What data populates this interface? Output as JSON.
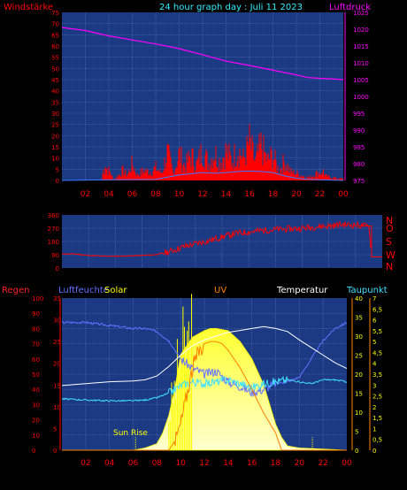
{
  "header": {
    "left_label": "Windstärke",
    "title": "24 hour graph day : Juli 11 2023",
    "right_label": "Luftdruck"
  },
  "hour_ticks": [
    "02",
    "04",
    "06",
    "08",
    "10",
    "12",
    "14",
    "16",
    "18",
    "20",
    "22",
    "00"
  ],
  "colors": {
    "panel_bg": "#1c3a84",
    "grid": "#5a72b8",
    "wind": "#ff0000",
    "wind_avg": "#3a7cff",
    "pressure": "#ff00ff",
    "direction": "#ff0000",
    "rain": "#ff2020",
    "humidity": "#6070ff",
    "solar": "#ffff00",
    "uv": "#ff8000",
    "temperature": "#ffffff",
    "dewpoint": "#40e0ff",
    "tick_red": "#ff0000",
    "tick_yellow": "#ffff00"
  },
  "chart_data": [
    {
      "type": "line",
      "name": "wind-pressure",
      "x_hours": [
        0,
        24
      ],
      "ylim_left": [
        0,
        75
      ],
      "ylim_right": [
        975,
        1025
      ],
      "yticks_left": [
        "0",
        "5",
        "10",
        "15",
        "20",
        "25",
        "30",
        "35",
        "40",
        "45",
        "50",
        "55",
        "60",
        "65",
        "70",
        "75"
      ],
      "yticks_right": [
        "975",
        "980",
        "985",
        "990",
        "995",
        "1000",
        "1005",
        "1010",
        "1015",
        "1020",
        "1025"
      ],
      "ylabel_left": "Windstärke",
      "ylabel_right": "Luftdruck",
      "series": [
        {
          "key": "pressure",
          "x": [
            0,
            2,
            4,
            6,
            8,
            10,
            12,
            14,
            16,
            18,
            20,
            21,
            22,
            24
          ],
          "values": [
            1020.5,
            1019.6,
            1018,
            1016.8,
            1015.6,
            1014.2,
            1012.4,
            1010.5,
            1009.2,
            1007.8,
            1006.4,
            1005.6,
            1005.4,
            1005.0
          ]
        },
        {
          "key": "wind_envelope",
          "x": [
            0,
            3.4,
            3.5,
            3.8,
            4.2,
            4.4,
            5.2,
            5.6,
            6,
            6.4,
            7,
            7.6,
            8,
            8.5,
            9,
            9.5,
            10,
            10.5,
            11,
            11.5,
            12,
            12.5,
            13,
            13.5,
            14,
            14.5,
            15,
            15.5,
            16,
            16.5,
            17,
            17.5,
            18,
            18.5,
            19,
            19.5,
            20,
            21,
            22,
            22.5,
            23,
            24
          ],
          "values": [
            0,
            0,
            7,
            9,
            5,
            0,
            7,
            4,
            12,
            4,
            7,
            6,
            9,
            5,
            20,
            5,
            19,
            10,
            18,
            11,
            22,
            12,
            20,
            13,
            21,
            14,
            23,
            15,
            27,
            13,
            25,
            14,
            18,
            7,
            14,
            6,
            5,
            2,
            6,
            3,
            2,
            1
          ]
        },
        {
          "key": "wind_avg",
          "x": [
            0,
            8,
            9,
            10,
            11,
            12,
            13,
            14,
            15,
            16,
            17,
            18,
            19,
            20,
            21,
            22,
            24
          ],
          "values": [
            0,
            0.5,
            1.5,
            2.5,
            3,
            3.5,
            3.2,
            3.5,
            4,
            4.2,
            4,
            3.5,
            2,
            1,
            0.5,
            0.3,
            0
          ]
        }
      ]
    },
    {
      "type": "line",
      "name": "wind-direction",
      "x_hours": [
        0,
        24
      ],
      "ylim": [
        0,
        360
      ],
      "yticks": [
        "0",
        "90",
        "180",
        "270",
        "360"
      ],
      "compass_labels": [
        "N",
        "W",
        "S",
        "O",
        "N"
      ],
      "series": [
        {
          "key": "direction",
          "x": [
            0,
            1,
            2,
            3,
            4,
            5,
            6,
            7,
            8,
            9,
            10,
            11,
            12,
            13,
            14,
            15,
            16,
            17,
            18,
            19,
            20,
            21,
            22,
            23,
            23.2,
            24
          ],
          "values": [
            95,
            95,
            85,
            80,
            80,
            82,
            85,
            90,
            110,
            140,
            165,
            185,
            210,
            235,
            245,
            255,
            260,
            265,
            270,
            280,
            285,
            295,
            290,
            285,
            75,
            75
          ]
        }
      ]
    },
    {
      "type": "line",
      "name": "weather-multi",
      "x_hours": [
        0,
        24
      ],
      "legend": [
        "Regen",
        "Luftfeuchte",
        "Solar",
        "UV",
        "Temperatur",
        "Taupunkt"
      ],
      "annotation": "Sun Rise",
      "ylim_rain": [
        0,
        100
      ],
      "yticks_rain": [
        "0",
        "10",
        "20",
        "30",
        "40",
        "50",
        "60",
        "70",
        "80",
        "90",
        "100"
      ],
      "ylim_humidity": [
        0,
        35
      ],
      "yticks_humidity": [
        "0",
        "5",
        "10",
        "15",
        "20",
        "25",
        "30",
        "35"
      ],
      "ylim_temp": [
        0,
        40
      ],
      "yticks_temp": [
        "0",
        "5",
        "10",
        "15",
        "20",
        "25",
        "30",
        "35",
        "40"
      ],
      "ylim_uv": [
        0,
        7
      ],
      "yticks_uv": [
        "0",
        "0,5",
        "1",
        "1,5",
        "2",
        "2,5",
        "3",
        "3,5",
        "4",
        "4,5",
        "5",
        "5,5",
        "6",
        "6,5",
        "7"
      ],
      "series": [
        {
          "key": "humidity",
          "x": [
            0,
            2,
            4,
            6,
            7,
            8,
            9,
            10,
            11,
            12,
            13,
            14,
            15,
            16,
            17,
            18,
            19,
            20,
            21,
            22,
            23,
            24
          ],
          "values": [
            84,
            84,
            82,
            80,
            80,
            78,
            72,
            60,
            54,
            50,
            52,
            45,
            42,
            38,
            40,
            44,
            45,
            48,
            60,
            72,
            80,
            84
          ]
        },
        {
          "key": "temperature",
          "x": [
            0,
            2,
            4,
            6,
            7,
            8,
            9,
            10,
            11,
            12,
            13,
            14,
            15,
            16,
            17,
            18,
            19,
            20,
            21,
            22,
            23,
            24
          ],
          "values": [
            17,
            17.5,
            18,
            18.2,
            18.5,
            19.5,
            22,
            25,
            27.5,
            29,
            30,
            31,
            31.5,
            32,
            32.5,
            32,
            31.2,
            29,
            27,
            25,
            23,
            21.5
          ]
        },
        {
          "key": "dewpoint",
          "x": [
            0,
            2,
            4,
            6,
            7,
            8,
            9,
            10,
            11,
            12,
            13,
            14,
            15,
            16,
            17,
            18,
            19,
            20,
            21,
            22,
            23,
            24
          ],
          "values": [
            13.5,
            13.2,
            13,
            13,
            13.2,
            13.8,
            15,
            17,
            18,
            17.5,
            18,
            18.5,
            17.5,
            16.5,
            17.5,
            18,
            18.5,
            18,
            17.5,
            18.5,
            18.5,
            18
          ]
        },
        {
          "key": "uv",
          "x": [
            0,
            9,
            9.6,
            10,
            10.5,
            11,
            11.5,
            12,
            12.5,
            13,
            13.5,
            14,
            15,
            16,
            17,
            18,
            18.5,
            24
          ],
          "values": [
            0,
            0,
            0.5,
            1.2,
            2.5,
            3.8,
            4.5,
            4.9,
            5,
            5,
            4.9,
            4.6,
            3.8,
            2.8,
            1.7,
            0.8,
            0,
            0
          ]
        },
        {
          "key": "solar",
          "x": [
            0,
            6,
            7,
            8,
            8.5,
            9,
            9.5,
            10,
            11,
            12,
            12.5,
            13,
            14,
            15,
            16,
            17,
            18,
            18.5,
            19,
            20,
            24
          ],
          "values": [
            0,
            0,
            0.5,
            1.5,
            4,
            8,
            14,
            22,
            26,
            27.5,
            28,
            28,
            27.5,
            25,
            21,
            15,
            6,
            3,
            1,
            0.5,
            0
          ]
        }
      ]
    }
  ]
}
